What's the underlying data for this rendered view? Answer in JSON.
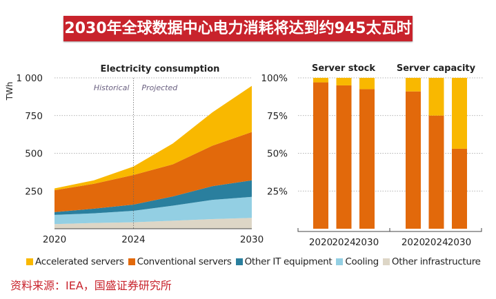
{
  "banner_title": "2030年全球数据中心电力消耗将达到约945太瓦时",
  "source": "资料来源：IEA，国盛证券研究所",
  "colors": {
    "Accelerated servers": "#f9b800",
    "Conventional servers": "#e2690b",
    "Other IT equipment": "#2a7f9e",
    "Cooling": "#93cfe3",
    "Other infrastructure": "#ddd6c6"
  },
  "chart_data": [
    {
      "type": "area",
      "title": "Electricity consumption",
      "ylabel": "TWh",
      "xlabel": "",
      "ylim": [
        0,
        1000
      ],
      "yticks": [
        250,
        500,
        750,
        1000
      ],
      "ytick_labels": [
        "250",
        "500",
        "750",
        "1 000"
      ],
      "xticks": [
        2020,
        2024,
        2030
      ],
      "xtick_labels": [
        "2020",
        "2024",
        "2030"
      ],
      "annotations": [
        "Historical",
        "Projected"
      ],
      "x": [
        2020,
        2022,
        2024,
        2026,
        2028,
        2030
      ],
      "stacked": true,
      "series": [
        {
          "name": "Other infrastructure",
          "values": [
            31,
            38,
            43,
            53,
            64,
            72
          ]
        },
        {
          "name": "Cooling",
          "values": [
            61,
            64,
            76,
            100,
            127,
            139
          ]
        },
        {
          "name": "Other IT equipment",
          "values": [
            18,
            31,
            41,
            61,
            91,
            110
          ]
        },
        {
          "name": "Conventional servers",
          "values": [
            145,
            165,
            196,
            213,
            268,
            320
          ]
        },
        {
          "name": "Accelerated servers",
          "values": [
            12,
            23,
            56,
            138,
            221,
            306
          ]
        }
      ],
      "grid": true
    },
    {
      "type": "bar",
      "stacked": true,
      "percent": true,
      "ylim": [
        0,
        100
      ],
      "yticks": [
        25,
        50,
        75,
        100
      ],
      "ytick_labels": [
        "25%",
        "50%",
        "75%",
        "100%"
      ],
      "groups": [
        {
          "title": "Server stock",
          "categories": [
            "2020",
            "2024",
            "2030"
          ],
          "series": [
            {
              "name": "Conventional servers",
              "values": [
                97,
                95,
                92.5
              ]
            },
            {
              "name": "Accelerated servers",
              "values": [
                3,
                5,
                7.5
              ]
            }
          ]
        },
        {
          "title": "Server capacity",
          "categories": [
            "2020",
            "2024",
            "2030"
          ],
          "series": [
            {
              "name": "Conventional servers",
              "values": [
                91,
                75,
                53
              ]
            },
            {
              "name": "Accelerated servers",
              "values": [
                9,
                25,
                47
              ]
            }
          ]
        }
      ],
      "grid": true
    }
  ],
  "legend": [
    "Accelerated servers",
    "Conventional servers",
    "Other IT equipment",
    "Cooling",
    "Other infrastructure"
  ]
}
